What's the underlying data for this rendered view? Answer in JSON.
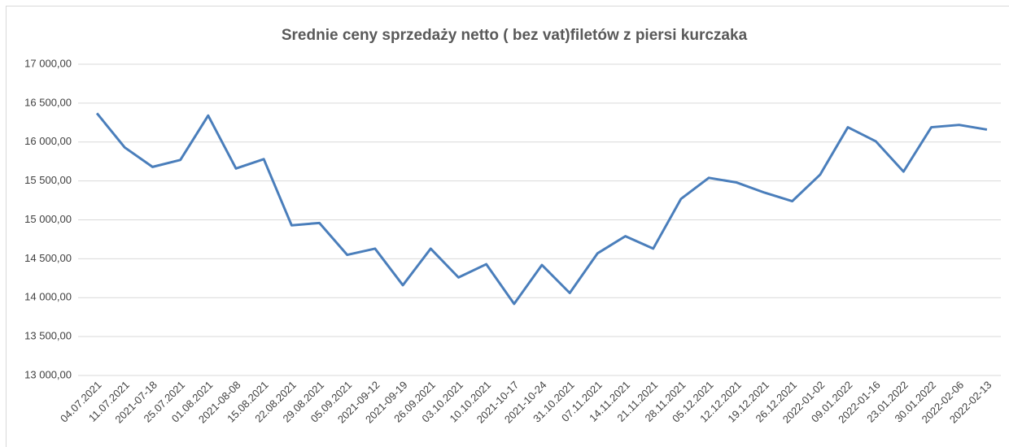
{
  "chart_data": {
    "type": "line",
    "title": "Srednie ceny sprzedaży netto ( bez vat)filetów z piersi kurczaka",
    "categories": [
      "04.07.2021",
      "11.07.2021",
      "2021-07-18",
      "25.07.2021",
      "01.08.2021",
      "2021-08-08",
      "15.08.2021",
      "22.08.2021",
      "29.08.2021",
      "05.09.2021",
      "2021-09-12",
      "2021-09-19",
      "26.09.2021",
      "03.10.2021",
      "10.10.2021",
      "2021-10-17",
      "2021-10-24",
      "31.10.2021",
      "07.11.2021",
      "14.11.2021",
      "21.11.2021",
      "28.11.2021",
      "05.12.2021",
      "12.12.2021",
      "19.12.2021",
      "26.12.2021",
      "2022-01-02",
      "09.01.2022",
      "2022-01-16",
      "23.01.2022",
      "30.01.2022",
      "2022-02-06",
      "2022-02-13"
    ],
    "series": [
      {
        "color": "#4a7ebb",
        "values": [
          16370,
          15930,
          15680,
          15770,
          16340,
          15660,
          15780,
          14930,
          14960,
          14550,
          14630,
          14160,
          14630,
          14260,
          14430,
          13920,
          14420,
          14060,
          14570,
          14790,
          14630,
          15270,
          15540,
          15480,
          15350,
          15240,
          15580,
          16190,
          16010,
          15620,
          16190,
          16220,
          16160
        ]
      }
    ],
    "ylim": [
      13000,
      17000
    ],
    "yticks": [
      {
        "value": 13000,
        "label": "13 000,00"
      },
      {
        "value": 13500,
        "label": "13 500,00"
      },
      {
        "value": 14000,
        "label": "14 000,00"
      },
      {
        "value": 14500,
        "label": "14 500,00"
      },
      {
        "value": 15000,
        "label": "15 000,00"
      },
      {
        "value": 15500,
        "label": "15 500,00"
      },
      {
        "value": 16000,
        "label": "16 000,00"
      },
      {
        "value": 16500,
        "label": "16 500,00"
      },
      {
        "value": 17000,
        "label": "17 000,00"
      }
    ],
    "grid": true
  }
}
